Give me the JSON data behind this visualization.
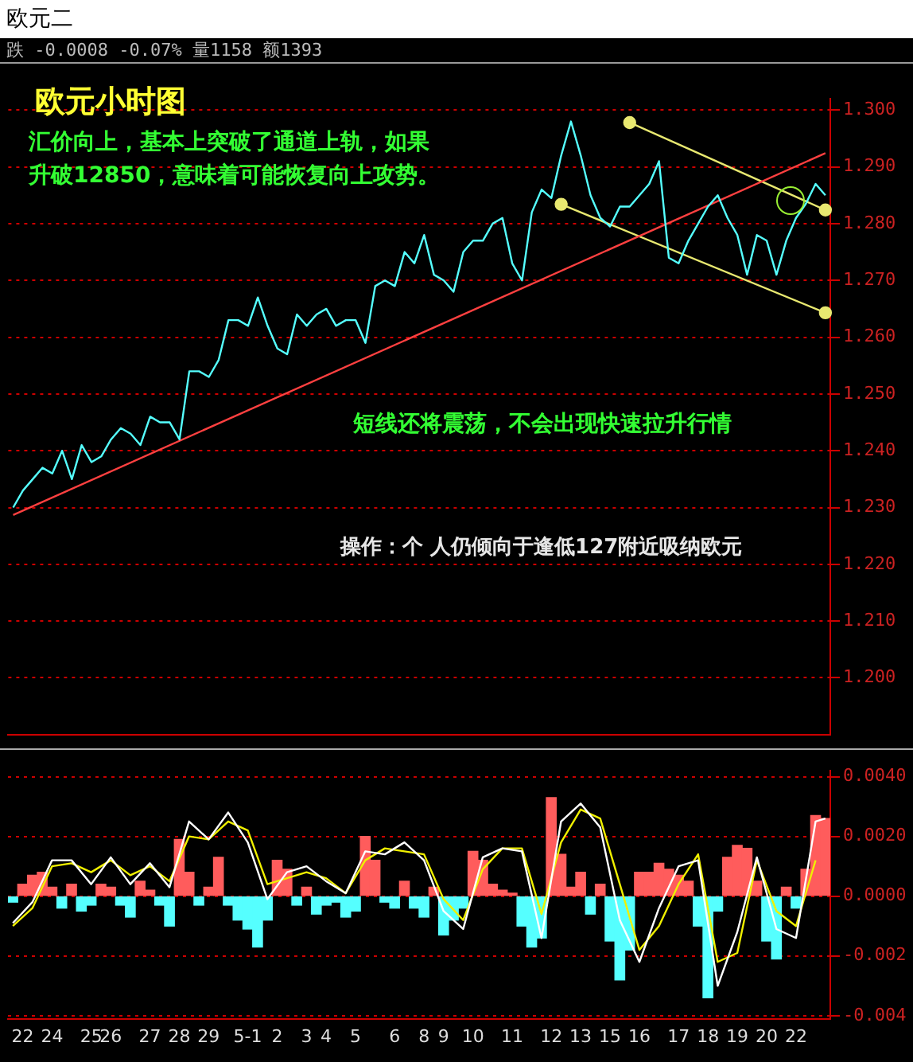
{
  "chart_data": [
    {
      "type": "line",
      "title": "欧元小时图",
      "subtitle": "欧元二",
      "annotations": [
        "跌 -0.0008 -0.07% 量1158 额1393",
        "汇价向上，基本上突破了通道上轨，如果升破12850，意味着可能恢复向上攻势。",
        "短线还将震荡，不会出现快速拉升行情",
        "操作：个 人仍倾向于逢低127附近吸纳欧元"
      ],
      "categories": [
        null,
        null,
        null,
        null,
        null,
        null,
        null,
        null,
        null,
        null,
        null,
        null,
        null,
        null,
        null,
        null,
        null,
        null,
        null,
        null,
        null,
        null,
        null,
        null,
        null,
        null,
        null,
        null,
        null,
        null,
        null,
        null,
        null,
        null,
        null,
        null,
        null,
        null,
        null,
        null,
        null,
        null,
        null,
        null,
        null,
        null,
        null,
        null,
        null,
        null,
        null,
        null,
        null,
        null,
        null,
        null,
        null,
        null,
        null,
        null,
        null,
        null,
        null,
        null,
        null,
        null,
        null,
        null,
        null,
        null,
        null,
        null,
        null,
        null,
        null,
        null,
        null,
        null,
        null,
        null,
        null,
        null,
        null,
        null
      ],
      "series": [
        {
          "color": "#55ffff",
          "values": [
            1.23,
            1.233,
            1.235,
            1.237,
            1.236,
            1.24,
            1.235,
            1.241,
            1.238,
            1.239,
            1.242,
            1.244,
            1.243,
            1.241,
            1.246,
            1.245,
            1.245,
            1.242,
            1.254,
            1.254,
            1.253,
            1.256,
            1.263,
            1.263,
            1.262,
            1.267,
            1.262,
            1.258,
            1.257,
            1.264,
            1.262,
            1.264,
            1.265,
            1.262,
            1.263,
            1.263,
            1.259,
            1.269,
            1.27,
            1.269,
            1.275,
            1.273,
            1.278,
            1.271,
            1.27,
            1.268,
            1.275,
            1.277,
            1.277,
            1.28,
            1.281,
            1.273,
            1.27,
            1.282,
            1.286,
            1.2845,
            1.292,
            1.298,
            1.292,
            1.285,
            1.281,
            1.2795,
            1.283,
            1.283,
            1.285,
            1.287,
            1.291,
            1.274,
            1.273,
            1.277,
            1.28,
            1.283,
            1.285,
            1.281,
            1.278,
            1.271,
            1.278,
            1.277,
            1.271,
            1.277,
            1.281,
            1.2835,
            1.287,
            1.285
          ]
        },
        {
          "type": "line",
          "color": "#ff4040",
          "values": [
            1.2287,
            null,
            null,
            null,
            null,
            null,
            null,
            null,
            null,
            null,
            null,
            null,
            null,
            null,
            null,
            null,
            null,
            null,
            null,
            null,
            null,
            null,
            null,
            null,
            null,
            null,
            null,
            null,
            null,
            null,
            null,
            null,
            null,
            null,
            null,
            null,
            null,
            null,
            null,
            null,
            null,
            null,
            null,
            null,
            null,
            null,
            null,
            null,
            null,
            null,
            null,
            null,
            null,
            null,
            null,
            null,
            null,
            null,
            null,
            null,
            null,
            null,
            null,
            null,
            null,
            null,
            null,
            null,
            null,
            null,
            null,
            null,
            null,
            null,
            null,
            null,
            null,
            null,
            null,
            null,
            null,
            null,
            null,
            1.2924
          ]
        },
        {
          "type": "line",
          "color": "#e8e870",
          "marker": "circle",
          "values": [
            null,
            null,
            null,
            null,
            null,
            null,
            null,
            null,
            null,
            null,
            null,
            null,
            null,
            null,
            null,
            null,
            null,
            null,
            null,
            null,
            null,
            null,
            null,
            null,
            null,
            null,
            null,
            null,
            null,
            null,
            null,
            null,
            null,
            null,
            null,
            null,
            null,
            null,
            null,
            null,
            null,
            null,
            null,
            null,
            null,
            null,
            null,
            null,
            null,
            null,
            null,
            null,
            null,
            null,
            null,
            null,
            null,
            null,
            null,
            null,
            null,
            null,
            null,
            1.2978,
            null,
            null,
            null,
            null,
            null,
            null,
            null,
            null,
            null,
            null,
            null,
            null,
            null,
            null,
            null,
            null,
            null,
            null,
            null,
            1.2824
          ]
        },
        {
          "type": "line",
          "color": "#e8e870",
          "marker": "circle",
          "values": [
            null,
            null,
            null,
            null,
            null,
            null,
            null,
            null,
            null,
            null,
            null,
            null,
            null,
            null,
            null,
            null,
            null,
            null,
            null,
            null,
            null,
            null,
            null,
            null,
            null,
            null,
            null,
            null,
            null,
            null,
            null,
            null,
            null,
            null,
            null,
            null,
            null,
            null,
            null,
            null,
            null,
            null,
            null,
            null,
            null,
            null,
            null,
            null,
            null,
            null,
            null,
            null,
            null,
            null,
            null,
            null,
            1.2834,
            null,
            null,
            null,
            null,
            null,
            null,
            null,
            null,
            null,
            null,
            null,
            null,
            null,
            null,
            null,
            null,
            null,
            null,
            null,
            null,
            null,
            null,
            null,
            null,
            null,
            null,
            1.2643
          ]
        }
      ],
      "ylim": [
        1.19,
        1.302
      ],
      "yticks": [
        {
          "value": 1.2,
          "label": "1.200"
        },
        {
          "value": 1.21,
          "label": "1.210"
        },
        {
          "value": 1.22,
          "label": "1.220"
        },
        {
          "value": 1.23,
          "label": "1.230"
        },
        {
          "value": 1.24,
          "label": "1.240"
        },
        {
          "value": 1.25,
          "label": "1.250"
        },
        {
          "value": 1.26,
          "label": "1.260"
        },
        {
          "value": 1.27,
          "label": "1.270"
        },
        {
          "value": 1.28,
          "label": "1.280"
        },
        {
          "value": 1.29,
          "label": "1.290"
        },
        {
          "value": 1.3,
          "label": "1.300"
        }
      ],
      "grid": "y",
      "tick_labels": "y"
    },
    {
      "type": "bar",
      "categories": [
        null,
        "22",
        null,
        null,
        "24",
        null,
        null,
        null,
        "25",
        null,
        "26",
        null,
        null,
        null,
        "27",
        null,
        null,
        "28",
        null,
        null,
        "29",
        null,
        null,
        null,
        "5-1",
        null,
        null,
        "2",
        null,
        null,
        "3",
        null,
        "4",
        null,
        null,
        "5",
        null,
        null,
        null,
        "6",
        null,
        null,
        "8",
        null,
        "9",
        null,
        null,
        "10",
        null,
        null,
        null,
        "11",
        null,
        null,
        null,
        "12",
        null,
        null,
        "13",
        null,
        null,
        "15",
        null,
        null,
        "16",
        null,
        null,
        null,
        "17",
        null,
        null,
        "18",
        null,
        null,
        "19",
        null,
        null,
        "20",
        null,
        null,
        "22",
        null,
        null,
        null
      ],
      "series": [
        {
          "colors": [
            "#55ffff",
            "#ff5c5c",
            "#ff5c5c",
            "#ff5c5c",
            "#ff5c5c",
            "#55ffff",
            "#ff5c5c",
            "#55ffff",
            "#55ffff",
            "#ff5c5c",
            "#ff5c5c",
            "#55ffff",
            "#55ffff",
            "#ff5c5c",
            "#ff5c5c",
            "#55ffff",
            "#55ffff",
            "#ff5c5c",
            "#ff5c5c",
            "#55ffff",
            "#ff5c5c",
            "#ff5c5c",
            "#55ffff",
            "#55ffff",
            "#55ffff",
            "#55ffff",
            "#55ffff",
            "#ff5c5c",
            "#ff5c5c",
            "#55ffff",
            "#ff5c5c",
            "#55ffff",
            "#55ffff",
            "#55ffff",
            "#55ffff",
            "#55ffff",
            "#ff5c5c",
            "#ff5c5c",
            "#55ffff",
            "#55ffff",
            "#ff5c5c",
            "#55ffff",
            "#55ffff",
            "#ff5c5c",
            "#55ffff",
            "#55ffff",
            "#55ffff",
            "#ff5c5c",
            "#ff5c5c",
            "#ff5c5c",
            "#ff5c5c",
            "#ff5c5c",
            "#55ffff",
            "#55ffff",
            "#55ffff",
            "#ff5c5c",
            "#ff5c5c",
            "#ff5c5c",
            "#ff5c5c",
            "#55ffff",
            "#ff5c5c",
            "#55ffff",
            "#55ffff",
            "#55ffff",
            "#ff5c5c",
            "#ff5c5c",
            "#ff5c5c",
            "#ff5c5c",
            "#ff5c5c",
            "#ff5c5c",
            "#55ffff",
            "#55ffff",
            "#55ffff",
            "#ff5c5c",
            "#ff5c5c",
            "#ff5c5c",
            "#ff5c5c",
            "#55ffff",
            "#55ffff",
            "#ff5c5c",
            "#55ffff",
            "#ff5c5c",
            "#ff5c5c",
            "#ff5c5c"
          ],
          "values": [
            -0.0002,
            0.0004,
            0.0007,
            0.0008,
            0.0003,
            -0.0004,
            0.0004,
            -0.0005,
            -0.0003,
            0.0004,
            0.0003,
            -0.0003,
            -0.0007,
            0.0005,
            0.0002,
            -0.0003,
            -0.001,
            0.0019,
            0.0008,
            -0.0003,
            0.0003,
            0.0013,
            -0.0003,
            -0.0008,
            -0.0011,
            -0.0017,
            -0.0008,
            0.0012,
            0.0009,
            -0.0003,
            0.0003,
            -0.0006,
            -0.0003,
            -0.0002,
            -0.0007,
            -0.0005,
            0.002,
            0.0012,
            -0.0002,
            -0.0004,
            0.0005,
            -0.0004,
            -0.0007,
            0.0003,
            -0.0013,
            -0.0008,
            -0.0004,
            0.0015,
            0.0012,
            0.0004,
            0.0002,
            0.0001,
            -0.001,
            -0.0017,
            -0.0014,
            0.0033,
            0.0014,
            0.0003,
            0.0008,
            -0.0006,
            0.0004,
            -0.0015,
            -0.0028,
            -0.0018,
            0.0008,
            0.0008,
            0.0011,
            0.0009,
            0.0007,
            0.0005,
            -0.001,
            -0.0034,
            -0.0005,
            0.0013,
            0.0017,
            0.0016,
            0.0005,
            -0.0015,
            -0.0021,
            0.0003,
            -0.0004,
            0.0009,
            0.0027,
            0.0026
          ]
        },
        {
          "type": "line",
          "color": "#ffffff",
          "values": [
            -0.0009,
            null,
            -0.0002,
            null,
            0.0012,
            null,
            0.0012,
            null,
            0.0004,
            null,
            0.0013,
            null,
            0.0004,
            null,
            0.0011,
            null,
            0.0003,
            null,
            0.0025,
            null,
            0.0019,
            null,
            0.0028,
            null,
            0.0018,
            null,
            -0.0001,
            null,
            0.0008,
            null,
            0.001,
            null,
            0.0005,
            null,
            0.0001,
            null,
            0.0015,
            null,
            0.0014,
            null,
            0.0018,
            null,
            0.0012,
            null,
            -0.0005,
            null,
            -0.0011,
            null,
            0.0013,
            null,
            0.0016,
            null,
            0.0015,
            null,
            -0.0014,
            null,
            0.0025,
            null,
            0.0031,
            null,
            0.0023,
            null,
            -0.0008,
            null,
            -0.0022,
            null,
            -0.0004,
            null,
            0.001,
            null,
            0.0012,
            null,
            -0.003,
            null,
            -0.0012,
            null,
            0.0013,
            null,
            -0.0011,
            null,
            -0.0014,
            null,
            0.0025,
            0.0026
          ]
        },
        {
          "type": "line",
          "color": "#f0f000",
          "values": [
            -0.001,
            null,
            -0.0004,
            null,
            0.001,
            null,
            0.0011,
            null,
            0.0008,
            null,
            0.0012,
            null,
            0.0007,
            null,
            0.001,
            null,
            0.0005,
            null,
            0.002,
            null,
            0.0019,
            null,
            0.0025,
            null,
            0.0022,
            null,
            0.0004,
            null,
            0.0006,
            null,
            0.0008,
            null,
            0.0006,
            null,
            0.0001,
            null,
            0.0012,
            null,
            0.0016,
            null,
            0.0015,
            null,
            0.0014,
            null,
            -0.0001,
            null,
            -0.0008,
            null,
            0.0009,
            null,
            0.0016,
            null,
            0.0016,
            null,
            -0.0006,
            null,
            0.0018,
            null,
            0.0029,
            null,
            0.0026,
            null,
            0.0004,
            null,
            -0.0018,
            null,
            -0.001,
            null,
            0.0004,
            null,
            0.0014,
            null,
            -0.0022,
            null,
            -0.0019,
            null,
            0.0012,
            null,
            -0.0005,
            null,
            -0.001,
            null,
            0.0012,
            null
          ]
        }
      ],
      "ylim": [
        -0.0041,
        0.0042
      ],
      "yticks": [
        {
          "value": 0.004,
          "label": "0.0040"
        },
        {
          "value": 0.002,
          "label": "0.0020"
        },
        {
          "value": 0,
          "label": "0.0000"
        },
        {
          "value": -0.002,
          "label": "-0.002"
        },
        {
          "value": -0.004,
          "label": "-0.004"
        }
      ],
      "grid": "y"
    }
  ]
}
